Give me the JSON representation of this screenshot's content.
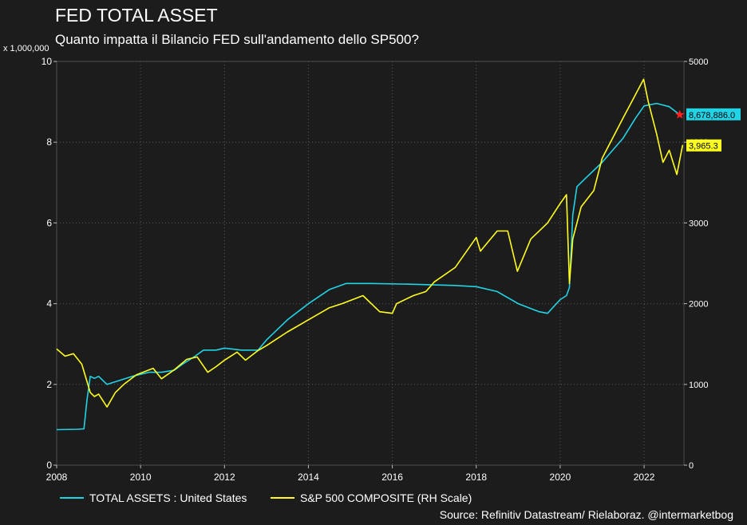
{
  "chart_data": {
    "type": "line",
    "title": "FED TOTAL ASSET",
    "subtitle": "Quanto impatta il Bilancio FED sull'andamento dello SP500?",
    "left_axis_multiplier": "x 1,000,000",
    "source": "Source: Refinitiv Datastream/ Rielaboraz. @intermarketbog",
    "x_axis": {
      "ticks": [
        "2008",
        "2010",
        "2012",
        "2014",
        "2016",
        "2018",
        "2020",
        "2022"
      ],
      "range": [
        2008.0,
        2022.95
      ]
    },
    "y_left": {
      "ticks": [
        "0",
        "2",
        "4",
        "6",
        "8",
        "10"
      ],
      "range": [
        0,
        10
      ]
    },
    "y_right": {
      "ticks": [
        "0",
        "1000",
        "2000",
        "3000",
        "4000",
        "5000"
      ],
      "range": [
        0,
        5000
      ]
    },
    "grid": true,
    "legend_position": "bottom",
    "series": [
      {
        "name": "TOTAL ASSETS : United States",
        "axis": "left",
        "color": "#22d3e6",
        "end_label": "8,678,886.0",
        "x": [
          2008.0,
          2008.5,
          2008.65,
          2008.72,
          2008.8,
          2008.9,
          2009.0,
          2009.2,
          2009.5,
          2009.8,
          2010.2,
          2010.5,
          2010.8,
          2011.0,
          2011.3,
          2011.5,
          2011.8,
          2012.0,
          2012.4,
          2012.8,
          2013.0,
          2013.5,
          2014.0,
          2014.5,
          2014.9,
          2015.5,
          2016.5,
          2017.5,
          2018.0,
          2018.5,
          2019.0,
          2019.5,
          2019.7,
          2020.0,
          2020.15,
          2020.22,
          2020.3,
          2020.4,
          2020.6,
          2021.0,
          2021.5,
          2021.8,
          2022.0,
          2022.3,
          2022.6,
          2022.85
        ],
        "values": [
          0.88,
          0.89,
          0.9,
          1.6,
          2.2,
          2.15,
          2.2,
          2.0,
          2.1,
          2.2,
          2.3,
          2.3,
          2.35,
          2.5,
          2.7,
          2.85,
          2.85,
          2.9,
          2.85,
          2.85,
          3.1,
          3.6,
          4.0,
          4.35,
          4.5,
          4.5,
          4.48,
          4.45,
          4.42,
          4.3,
          4.0,
          3.8,
          3.76,
          4.1,
          4.2,
          4.4,
          6.2,
          6.9,
          7.1,
          7.5,
          8.1,
          8.6,
          8.9,
          8.96,
          8.88,
          8.68
        ]
      },
      {
        "name": "S&P 500 COMPOSITE (RH Scale)",
        "axis": "right",
        "color": "#ffff1e",
        "end_label": "3,965.3",
        "x": [
          2008.0,
          2008.2,
          2008.4,
          2008.6,
          2008.8,
          2008.9,
          2009.0,
          2009.2,
          2009.4,
          2009.6,
          2009.9,
          2010.3,
          2010.5,
          2010.8,
          2011.1,
          2011.35,
          2011.6,
          2011.8,
          2012.0,
          2012.3,
          2012.5,
          2012.8,
          2013.0,
          2013.5,
          2014.0,
          2014.5,
          2014.8,
          2015.3,
          2015.7,
          2016.0,
          2016.1,
          2016.5,
          2016.8,
          2017.0,
          2017.5,
          2018.0,
          2018.1,
          2018.5,
          2018.75,
          2018.98,
          2019.3,
          2019.7,
          2020.0,
          2020.15,
          2020.22,
          2020.3,
          2020.5,
          2020.8,
          2021.0,
          2021.5,
          2021.99,
          2022.1,
          2022.3,
          2022.45,
          2022.6,
          2022.78,
          2022.92
        ],
        "values": [
          1440,
          1350,
          1380,
          1250,
          900,
          850,
          880,
          720,
          900,
          1000,
          1120,
          1200,
          1070,
          1180,
          1310,
          1340,
          1150,
          1220,
          1300,
          1400,
          1300,
          1420,
          1480,
          1650,
          1800,
          1950,
          2000,
          2100,
          1900,
          1880,
          2000,
          2100,
          2150,
          2270,
          2450,
          2820,
          2650,
          2900,
          2900,
          2400,
          2800,
          3000,
          3240,
          3350,
          2250,
          2800,
          3200,
          3400,
          3800,
          4300,
          4780,
          4500,
          4100,
          3750,
          3900,
          3600,
          3965
        ]
      }
    ]
  }
}
